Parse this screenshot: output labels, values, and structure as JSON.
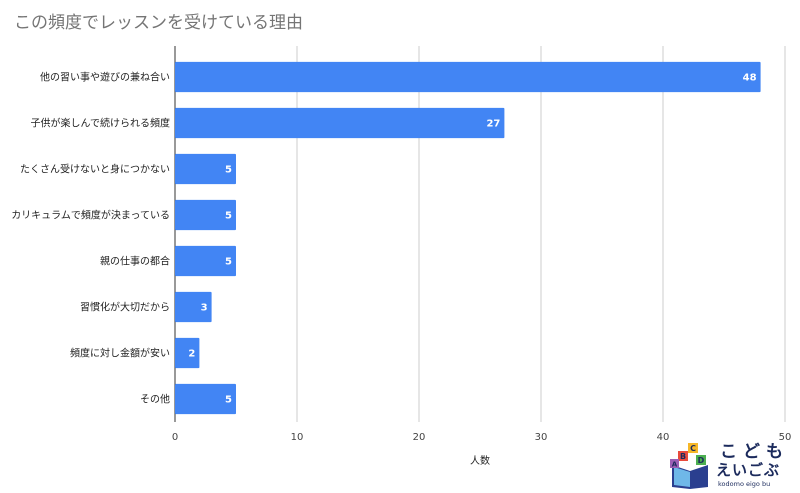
{
  "chart_data": {
    "type": "bar",
    "orientation": "horizontal",
    "title": "この頻度でレッスンを受けている理由",
    "xlabel": "人数",
    "ylabel": "",
    "xlim": [
      0,
      50
    ],
    "xticks": [
      0,
      10,
      20,
      30,
      40,
      50
    ],
    "grid": true,
    "bar_color": "#4285f4",
    "categories": [
      "他の習い事や遊びの兼ね合い",
      "子供が楽しんで続けられる頻度",
      "たくさん受けないと身につかない",
      "カリキュラムで頻度が決まっている",
      "親の仕事の都合",
      "習慣化が大切だから",
      "頻度に対し金額が安い",
      "その他"
    ],
    "values": [
      48,
      27,
      5,
      5,
      5,
      3,
      2,
      5
    ]
  },
  "logo": {
    "line1": "こども",
    "line2": "えいごぶ",
    "line3": "kodomo eigo bu",
    "block_letters": [
      "B",
      "C",
      "D",
      "A"
    ]
  }
}
